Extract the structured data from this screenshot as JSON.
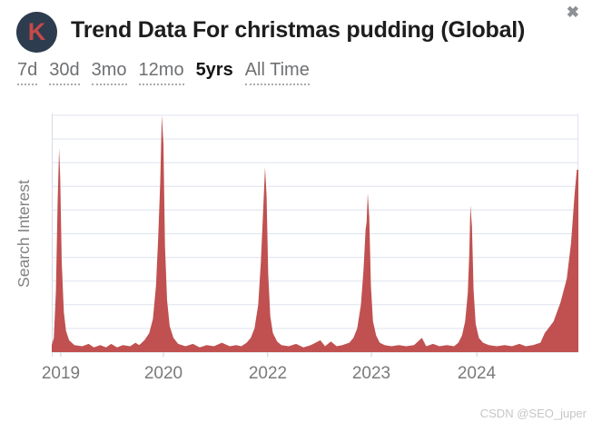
{
  "header": {
    "logo_letter": "K",
    "title": "Trend Data For christmas pudding (Global)",
    "close_glyph": "✖"
  },
  "tabs": [
    {
      "label": "7d",
      "active": false
    },
    {
      "label": "30d",
      "active": false
    },
    {
      "label": "3mo",
      "active": false
    },
    {
      "label": "12mo",
      "active": false
    },
    {
      "label": "5yrs",
      "active": true
    },
    {
      "label": "All Time",
      "active": false
    }
  ],
  "chart_data": {
    "type": "area",
    "title": "Trend Data For christmas pudding (Global)",
    "keyword": "christmas pudding",
    "region": "Global",
    "selected_range": "5yrs",
    "ylabel": "Search Interest",
    "ylim": [
      0,
      100
    ],
    "grid": "horizontal gridlines every 10 units, 0-100",
    "legend": "none",
    "x_ticks": [
      {
        "label": "2019",
        "pos": 0.017
      },
      {
        "label": "2020",
        "pos": 0.212
      },
      {
        "label": "2022",
        "pos": 0.41
      },
      {
        "label": "2023",
        "pos": 0.607
      },
      {
        "label": "2024",
        "pos": 0.807
      }
    ],
    "peaks": [
      {
        "x": 0.014,
        "value": 86
      },
      {
        "x": 0.209,
        "value": 100
      },
      {
        "x": 0.405,
        "value": 78
      },
      {
        "x": 0.6,
        "value": 67
      },
      {
        "x": 0.795,
        "value": 62
      },
      {
        "x": 0.997,
        "value": 77
      }
    ],
    "points": [
      [
        0.0,
        3
      ],
      [
        0.004,
        6
      ],
      [
        0.008,
        26
      ],
      [
        0.011,
        62
      ],
      [
        0.014,
        86
      ],
      [
        0.016,
        74
      ],
      [
        0.019,
        38
      ],
      [
        0.023,
        17
      ],
      [
        0.027,
        9
      ],
      [
        0.033,
        5
      ],
      [
        0.043,
        3
      ],
      [
        0.058,
        2.5
      ],
      [
        0.07,
        3.5
      ],
      [
        0.08,
        2
      ],
      [
        0.092,
        3
      ],
      [
        0.103,
        2
      ],
      [
        0.113,
        3.5
      ],
      [
        0.124,
        2
      ],
      [
        0.135,
        3
      ],
      [
        0.149,
        2.5
      ],
      [
        0.159,
        4
      ],
      [
        0.166,
        3
      ],
      [
        0.176,
        5
      ],
      [
        0.185,
        8
      ],
      [
        0.192,
        14
      ],
      [
        0.198,
        28
      ],
      [
        0.202,
        48
      ],
      [
        0.206,
        72
      ],
      [
        0.209,
        100
      ],
      [
        0.212,
        88
      ],
      [
        0.215,
        45
      ],
      [
        0.219,
        22
      ],
      [
        0.224,
        11
      ],
      [
        0.231,
        6
      ],
      [
        0.24,
        3.5
      ],
      [
        0.254,
        2.5
      ],
      [
        0.268,
        3.5
      ],
      [
        0.281,
        2
      ],
      [
        0.294,
        3
      ],
      [
        0.308,
        2.5
      ],
      [
        0.323,
        4
      ],
      [
        0.338,
        2.5
      ],
      [
        0.35,
        3
      ],
      [
        0.36,
        2.5
      ],
      [
        0.37,
        4
      ],
      [
        0.378,
        6
      ],
      [
        0.385,
        10
      ],
      [
        0.392,
        20
      ],
      [
        0.397,
        38
      ],
      [
        0.401,
        58
      ],
      [
        0.405,
        78
      ],
      [
        0.408,
        66
      ],
      [
        0.411,
        33
      ],
      [
        0.415,
        15
      ],
      [
        0.42,
        8
      ],
      [
        0.428,
        4.5
      ],
      [
        0.436,
        3
      ],
      [
        0.45,
        2.5
      ],
      [
        0.464,
        3.5
      ],
      [
        0.478,
        2
      ],
      [
        0.492,
        3
      ],
      [
        0.51,
        5
      ],
      [
        0.519,
        2.5
      ],
      [
        0.53,
        4.5
      ],
      [
        0.541,
        2.5
      ],
      [
        0.552,
        3
      ],
      [
        0.565,
        4
      ],
      [
        0.573,
        6
      ],
      [
        0.58,
        10
      ],
      [
        0.587,
        20
      ],
      [
        0.592,
        35
      ],
      [
        0.596,
        52
      ],
      [
        0.598,
        55
      ],
      [
        0.6,
        67
      ],
      [
        0.603,
        57
      ],
      [
        0.606,
        28
      ],
      [
        0.61,
        13
      ],
      [
        0.616,
        7
      ],
      [
        0.623,
        4
      ],
      [
        0.632,
        3
      ],
      [
        0.645,
        2.5
      ],
      [
        0.659,
        3
      ],
      [
        0.673,
        2.5
      ],
      [
        0.688,
        3
      ],
      [
        0.703,
        6
      ],
      [
        0.711,
        2.5
      ],
      [
        0.724,
        3.5
      ],
      [
        0.736,
        2.5
      ],
      [
        0.75,
        3
      ],
      [
        0.764,
        2.5
      ],
      [
        0.772,
        4
      ],
      [
        0.779,
        7
      ],
      [
        0.785,
        13
      ],
      [
        0.79,
        25
      ],
      [
        0.793,
        42
      ],
      [
        0.795,
        62
      ],
      [
        0.798,
        53
      ],
      [
        0.801,
        26
      ],
      [
        0.805,
        12
      ],
      [
        0.811,
        6
      ],
      [
        0.819,
        4
      ],
      [
        0.83,
        3
      ],
      [
        0.845,
        2.5
      ],
      [
        0.86,
        3
      ],
      [
        0.874,
        2.5
      ],
      [
        0.888,
        3.5
      ],
      [
        0.9,
        2.5
      ],
      [
        0.914,
        3
      ],
      [
        0.928,
        4
      ],
      [
        0.936,
        8
      ],
      [
        0.953,
        13
      ],
      [
        0.966,
        21
      ],
      [
        0.978,
        31
      ],
      [
        0.986,
        46
      ],
      [
        0.993,
        67
      ],
      [
        0.997,
        77
      ],
      [
        1.0,
        77
      ]
    ]
  },
  "watermark": "CSDN @SEO_juper",
  "colors": {
    "area": "#c05150",
    "logo_bg": "#2d3c4e",
    "logo_letter": "#c4494b",
    "title": "#1d1d1d",
    "tab_inactive": "#6e7073",
    "tab_active": "#141414",
    "text_muted": "#828282",
    "xlabel": "#7a7a7a",
    "grid": "#dee3ee",
    "axis": "#d6dbe6",
    "tick": "#c9cedb",
    "close": "#8d9196",
    "watermark": "#c6c6c6"
  }
}
